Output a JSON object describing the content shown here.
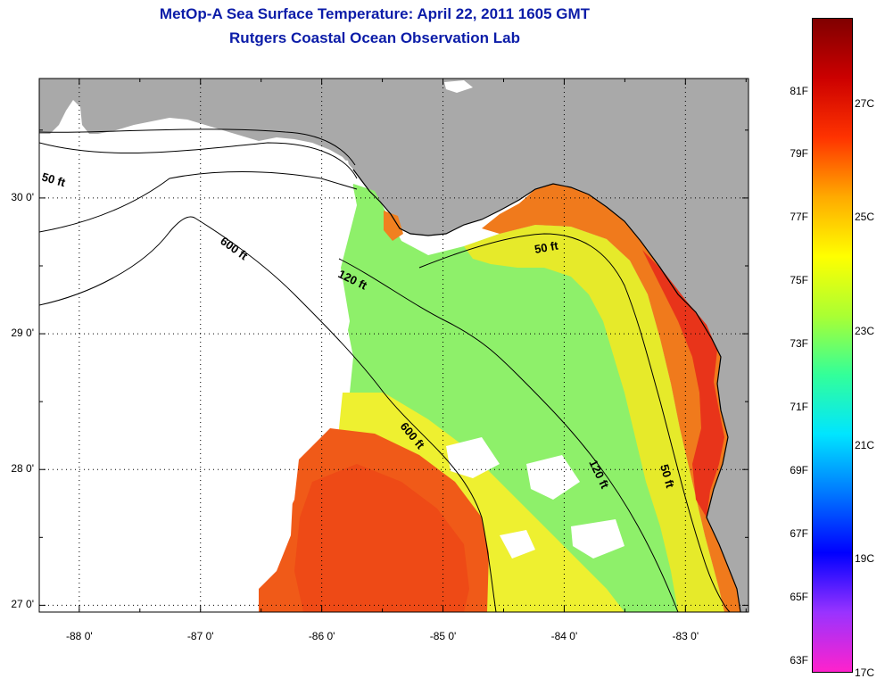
{
  "title_line1": "MetOp-A Sea Surface Temperature:  April 22, 2011 1605 GMT",
  "title_line2": "Rutgers Coastal Ocean Observation Lab",
  "latitude_ticks": [
    "30 0'",
    "29 0'",
    "28 0'",
    "27 0'"
  ],
  "longitude_ticks": [
    "-88 0'",
    "-87 0'",
    "-86 0'",
    "-85 0'",
    "-84 0'",
    "-83 0'"
  ],
  "latitude_values": [
    30,
    29,
    28,
    27
  ],
  "longitude_values": [
    -88,
    -87,
    -86,
    -85,
    -84,
    -83
  ],
  "lat_range": [
    26.95,
    30.88
  ],
  "lon_range": [
    -88.33,
    -82.48
  ],
  "contour_labels": [
    "50 ft",
    "600 ft",
    "120 ft",
    "50 ft",
    "600 ft",
    "120 ft",
    "50 ft"
  ],
  "colorbar": {
    "fahrenheit_labels": [
      "81F",
      "79F",
      "77F",
      "75F",
      "73F",
      "71F",
      "69F",
      "67F",
      "65F",
      "63F"
    ],
    "celsius_labels": [
      "27C",
      "25C",
      "23C",
      "21C",
      "19C",
      "17C"
    ],
    "fahrenheit_values": [
      81,
      79,
      77,
      75,
      73,
      71,
      69,
      67,
      65,
      63
    ],
    "celsius_values": [
      27,
      25,
      23,
      21,
      19,
      17
    ],
    "range_c": [
      17,
      28.5
    ],
    "colors": [
      "#ff22cc",
      "#9933ff",
      "#0000ff",
      "#0077ff",
      "#00e5ff",
      "#33ff99",
      "#aaff33",
      "#ffff00",
      "#ffaa00",
      "#ff3300",
      "#cc0000",
      "#800000"
    ]
  },
  "colors": {
    "land": "#a9a9a9",
    "title": "#0b1ca8",
    "warm_sst": "#f05a18",
    "mid_sst": "#e8e830",
    "cool_sst": "#8ef06a"
  }
}
